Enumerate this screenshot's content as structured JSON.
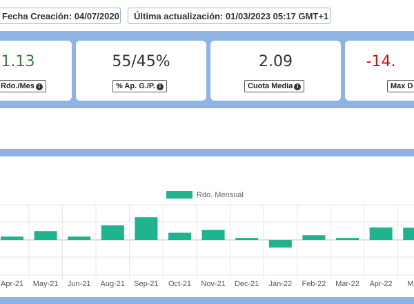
{
  "header": {
    "created": "Fecha Creación: 04/07/2020",
    "updated": "Última actualización: 01/03/2023 05:17 GMT+1"
  },
  "stats": [
    {
      "value": "1.13",
      "label": "Rdo./Mes",
      "color": "#3b7a3b"
    },
    {
      "value": "55/45%",
      "label": "% Ap. G./P.",
      "color": "#333333"
    },
    {
      "value": "2.09",
      "label": "Cuota Media",
      "color": "#333333"
    },
    {
      "value": "-14.",
      "label": "Max D",
      "color": "#cc1111"
    }
  ],
  "chart_data": {
    "type": "bar",
    "legend": "Rdo. Mensual",
    "legend_position": "top-center",
    "color": "#1fb38f",
    "categories": [
      "Apr-21",
      "May-21",
      "Jun-21",
      "Aug-21",
      "Sep-21",
      "Oct-21",
      "Nov-21",
      "Dec-21",
      "Jan-22",
      "Feb-22",
      "Mar-22",
      "Apr-22",
      "May"
    ],
    "values": [
      1.2,
      3.2,
      1.2,
      5.3,
      8.2,
      2.6,
      3.6,
      0.7,
      -2.8,
      1.7,
      0.7,
      4.5,
      4.4
    ],
    "grid": true
  }
}
